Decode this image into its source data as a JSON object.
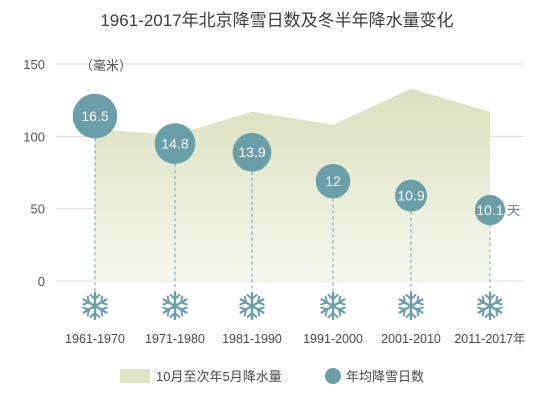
{
  "chart_data": {
    "type": "area",
    "title": "1961-2017年北京降雪日数及冬半年降水量变化",
    "y_unit": "（毫米）",
    "y_ticks": [
      "0",
      "50",
      "100",
      "150"
    ],
    "ylim": [
      0,
      150
    ],
    "categories": [
      "1961-1970",
      "1971-1980",
      "1981-1990",
      "1991-2000",
      "2001-2010",
      "2011-2017年"
    ],
    "series": [
      {
        "name": "10月至次年5月降水量",
        "type": "area",
        "values": [
          105,
          101,
          117,
          108,
          133,
          117
        ]
      },
      {
        "name": "年均降雪日数",
        "type": "bubble",
        "values": [
          16.5,
          14.8,
          13.9,
          12,
          10.9,
          10.1
        ],
        "labels": [
          "16.5",
          "14.8",
          "13.9",
          "12",
          "10.9",
          "10.1"
        ],
        "y_position_mm": [
          114,
          95,
          89,
          69,
          59,
          49
        ]
      }
    ],
    "bubble_unit": "天",
    "snowflake_icon": "snowflake-icon",
    "colors": {
      "area": "#dfe4c3",
      "bubble": "#6a9ea9",
      "snowflake": "#6a9ea9",
      "dash": "#6a9ea9",
      "grid": "#dddddd"
    }
  }
}
